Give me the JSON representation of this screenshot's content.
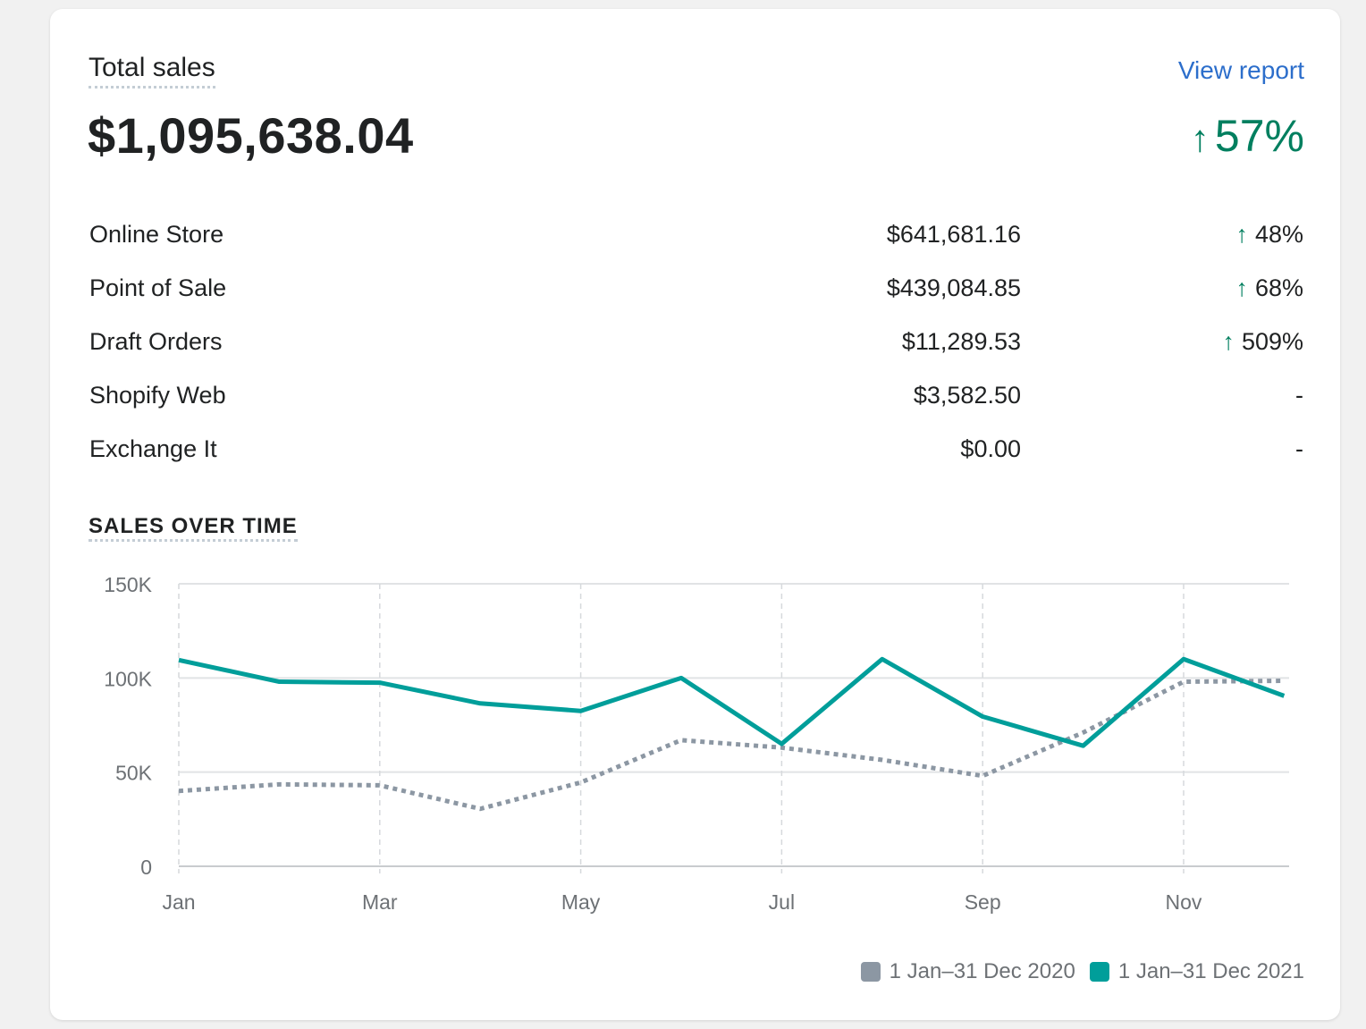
{
  "card": {
    "title": "Total sales",
    "view_report_label": "View report",
    "total_value": "$1,095,638.04",
    "total_change": "57%",
    "total_change_arrow": "↑"
  },
  "channels": [
    {
      "name": "Online Store",
      "amount": "$641,681.16",
      "arrow": "↑",
      "change": "48%"
    },
    {
      "name": "Point of Sale",
      "amount": "$439,084.85",
      "arrow": "↑",
      "change": "68%"
    },
    {
      "name": "Draft Orders",
      "amount": "$11,289.53",
      "arrow": "↑",
      "change": "509%"
    },
    {
      "name": "Shopify Web",
      "amount": "$3,582.50",
      "arrow": "",
      "change": "-"
    },
    {
      "name": "Exchange It",
      "amount": "$0.00",
      "arrow": "",
      "change": "-"
    }
  ],
  "colors": {
    "accent_teal": "#009e9a",
    "previous_gray": "#8c97a3",
    "positive_green": "#007f5f",
    "link_blue": "#2c6ecb"
  },
  "chart_data": {
    "type": "line",
    "title": "SALES OVER TIME",
    "x": [
      1,
      2,
      3,
      4,
      5,
      6,
      7,
      8,
      9,
      10,
      11,
      12
    ],
    "x_tick_labels": [
      {
        "x": 1,
        "label": "Jan"
      },
      {
        "x": 3,
        "label": "Mar"
      },
      {
        "x": 5,
        "label": "May"
      },
      {
        "x": 7,
        "label": "Jul"
      },
      {
        "x": 9,
        "label": "Sep"
      },
      {
        "x": 11,
        "label": "Nov"
      }
    ],
    "y_ticks": [
      0,
      50000,
      100000,
      150000
    ],
    "y_tick_labels": [
      "0",
      "50K",
      "100K",
      "150K"
    ],
    "xlim": [
      1,
      12.05
    ],
    "ylim": [
      0,
      150000
    ],
    "grid": true,
    "legend_position": "bottom-right",
    "series": [
      {
        "name": "1 Jan–31 Dec 2020",
        "color": "#8c97a3",
        "style": "dotted",
        "values": [
          40000,
          43500,
          43000,
          30500,
          44500,
          67000,
          63000,
          56500,
          48000,
          71000,
          98000,
          98500
        ]
      },
      {
        "name": "1 Jan–31 Dec 2021",
        "color": "#009e9a",
        "style": "solid",
        "values": [
          109500,
          98000,
          97500,
          86500,
          82500,
          100000,
          65000,
          110000,
          79500,
          64000,
          110000,
          90500
        ]
      }
    ]
  }
}
